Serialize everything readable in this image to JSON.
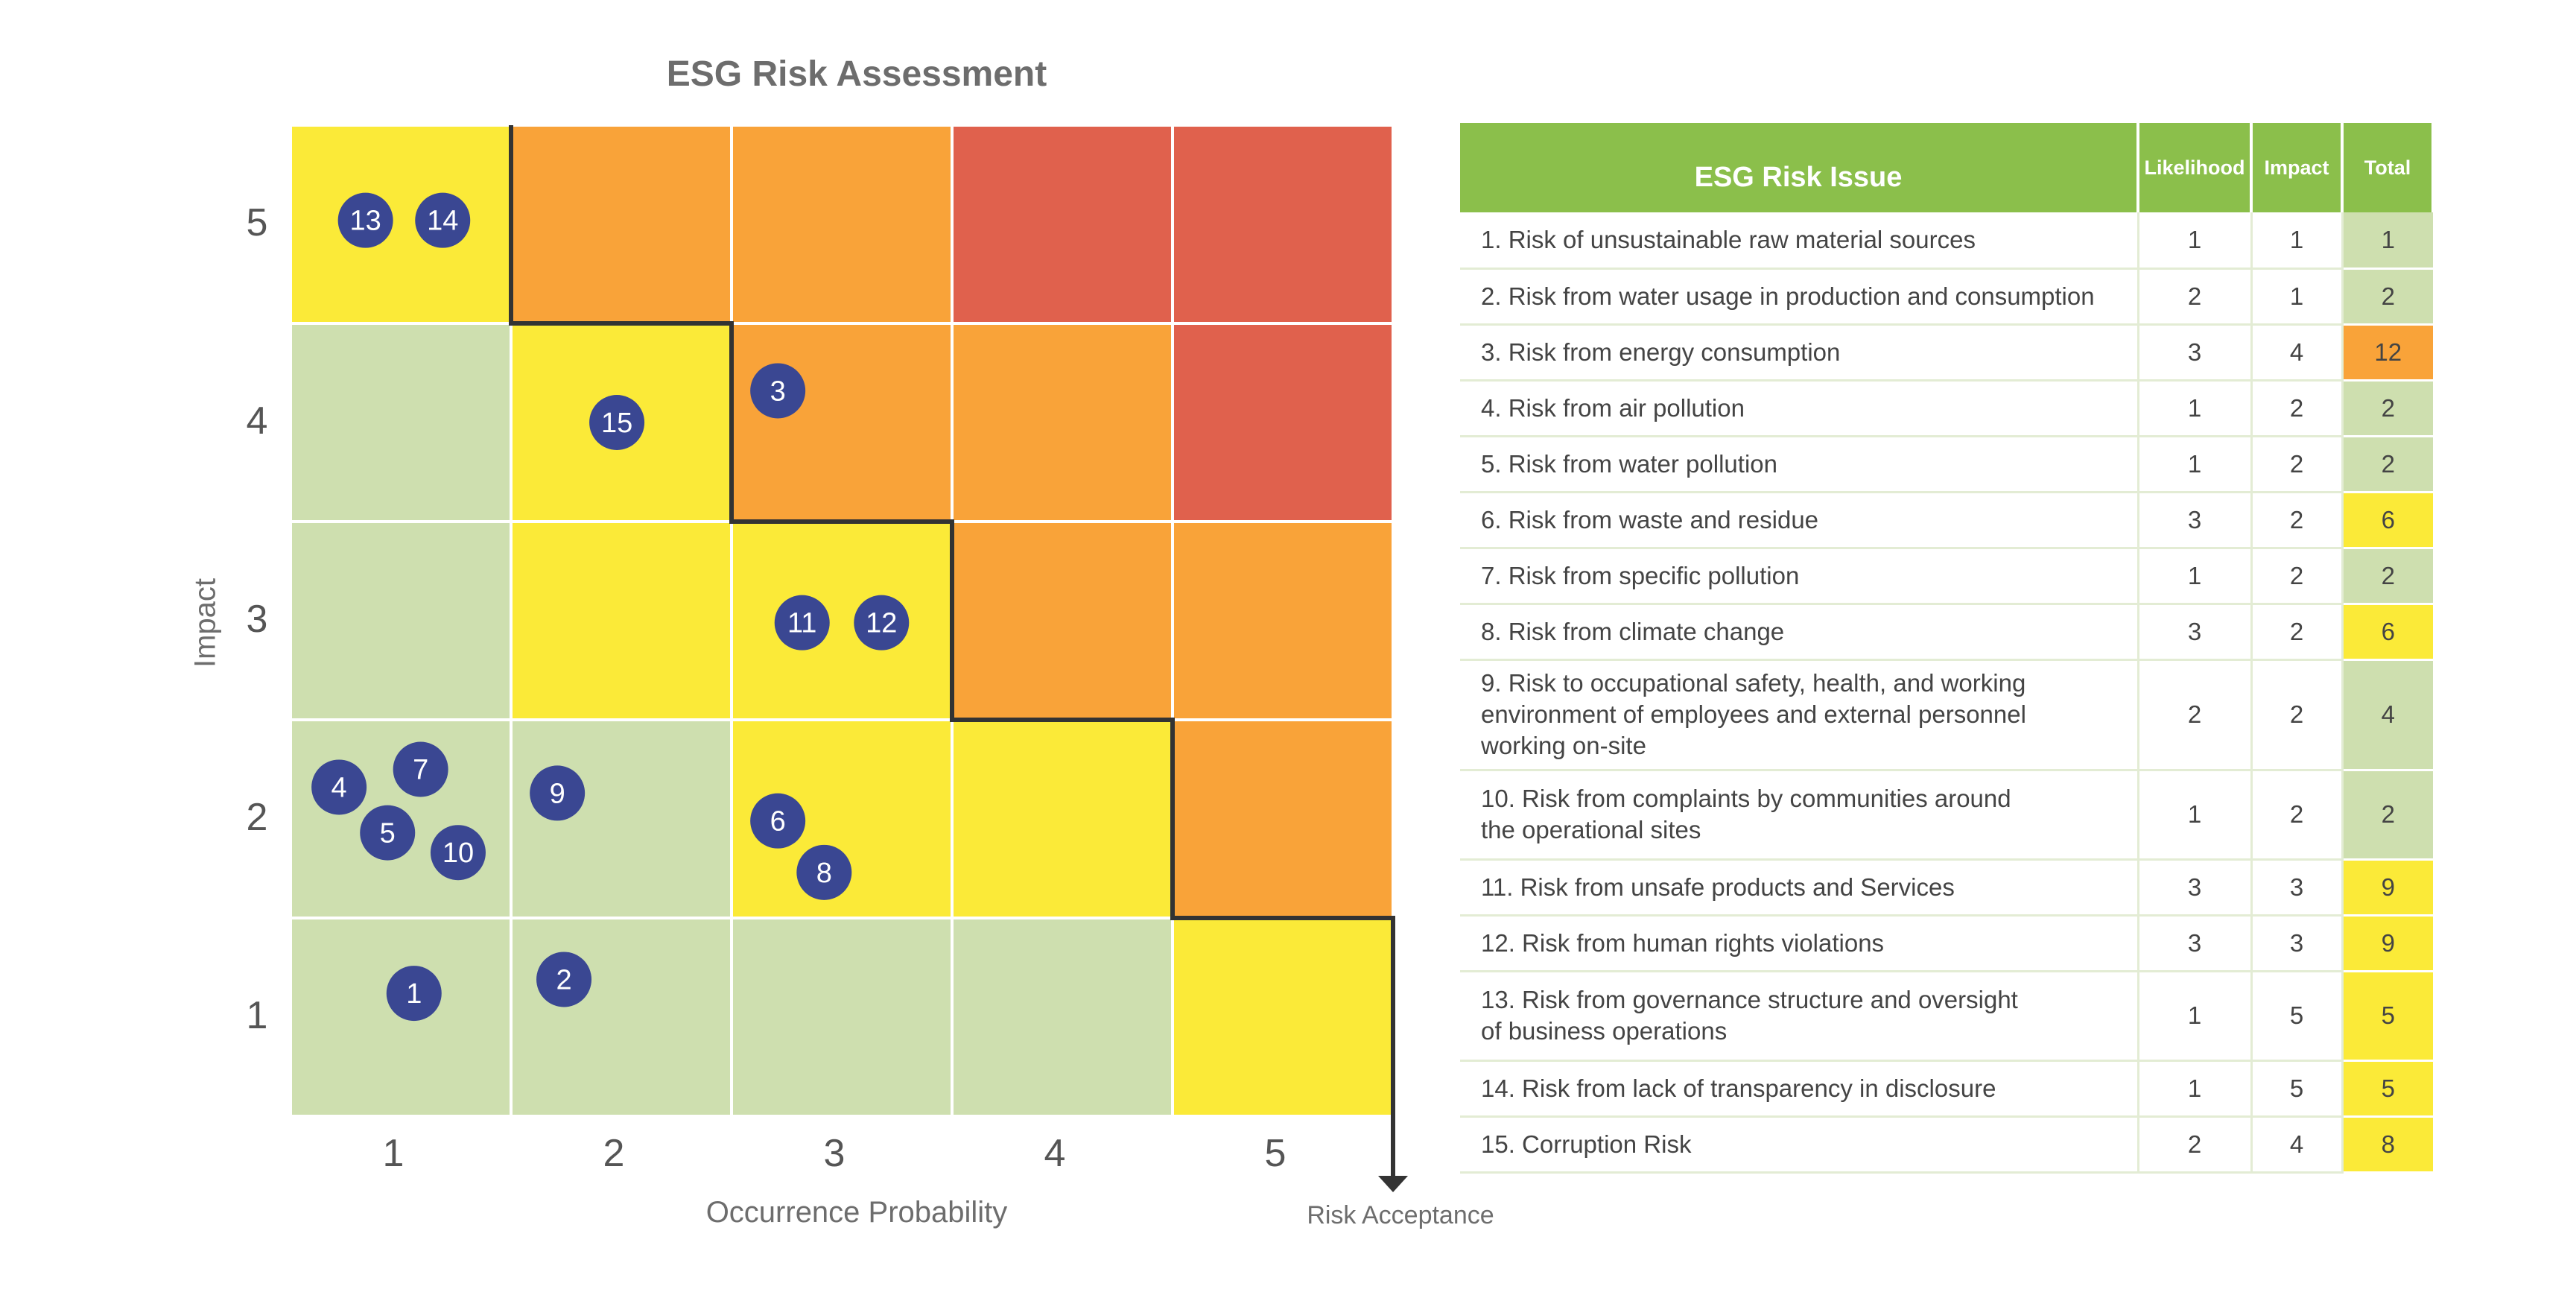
{
  "chart_data": {
    "type": "heatmap",
    "title": "ESG Risk Assessment",
    "xlabel": "Occurrence Probability",
    "ylabel": "Impact",
    "x_ticks": [
      "1",
      "2",
      "3",
      "4",
      "5"
    ],
    "y_ticks": [
      "1",
      "2",
      "3",
      "4",
      "5"
    ],
    "annotation": "Risk Acceptance",
    "colors": {
      "green": "#cedfaf",
      "yellow": "#fbea38",
      "orange": "#f9a339",
      "red": "#e0614d",
      "marker": "#3a4792",
      "boundary": "#333333"
    },
    "grid_colors": [
      [
        "yellow",
        "orange",
        "orange",
        "red",
        "red"
      ],
      [
        "green",
        "yellow",
        "orange",
        "orange",
        "red"
      ],
      [
        "green",
        "yellow",
        "yellow",
        "orange",
        "orange"
      ],
      [
        "green",
        "green",
        "yellow",
        "yellow",
        "orange"
      ],
      [
        "green",
        "green",
        "green",
        "green",
        "yellow"
      ]
    ],
    "points": [
      {
        "label": "1",
        "x": 1,
        "y": 1
      },
      {
        "label": "2",
        "x": 2,
        "y": 1
      },
      {
        "label": "3",
        "x": 3,
        "y": 4
      },
      {
        "label": "4",
        "x": 1,
        "y": 2
      },
      {
        "label": "5",
        "x": 1,
        "y": 2
      },
      {
        "label": "6",
        "x": 3,
        "y": 2
      },
      {
        "label": "7",
        "x": 1,
        "y": 2
      },
      {
        "label": "8",
        "x": 3,
        "y": 2
      },
      {
        "label": "9",
        "x": 2,
        "y": 2
      },
      {
        "label": "10",
        "x": 1,
        "y": 2
      },
      {
        "label": "11",
        "x": 3,
        "y": 3
      },
      {
        "label": "12",
        "x": 3,
        "y": 3
      },
      {
        "label": "13",
        "x": 1,
        "y": 5
      },
      {
        "label": "14",
        "x": 1,
        "y": 5
      },
      {
        "label": "15",
        "x": 2,
        "y": 4
      }
    ]
  },
  "table": {
    "headers": {
      "issue": "ESG Risk Issue",
      "likelihood": "Likelihood",
      "impact": "Impact",
      "total": "Total"
    },
    "rows": [
      {
        "issue": "1. Risk of unsustainable raw material sources",
        "likelihood": "1",
        "impact": "1",
        "total": "1",
        "level": "green"
      },
      {
        "issue": "2. Risk from water usage in production and consumption",
        "likelihood": "2",
        "impact": "1",
        "total": "2",
        "level": "green"
      },
      {
        "issue": "3. Risk from energy consumption",
        "likelihood": "3",
        "impact": "4",
        "total": "12",
        "level": "orange"
      },
      {
        "issue": "4. Risk from air pollution",
        "likelihood": "1",
        "impact": "2",
        "total": "2",
        "level": "green"
      },
      {
        "issue": "5. Risk from water pollution",
        "likelihood": "1",
        "impact": "2",
        "total": "2",
        "level": "green"
      },
      {
        "issue": "6. Risk from waste and residue",
        "likelihood": "3",
        "impact": "2",
        "total": "6",
        "level": "yellow"
      },
      {
        "issue": "7. Risk from specific pollution",
        "likelihood": "1",
        "impact": "2",
        "total": "2",
        "level": "green"
      },
      {
        "issue": "8. Risk from climate change",
        "likelihood": "3",
        "impact": "2",
        "total": "6",
        "level": "yellow"
      },
      {
        "issue": "9. Risk to occupational safety, health, and working\n    environment of employees and external personnel\n    working on-site",
        "likelihood": "2",
        "impact": "2",
        "total": "4",
        "level": "green"
      },
      {
        "issue": "10. Risk from complaints by communities around\n      the operational sites",
        "likelihood": "1",
        "impact": "2",
        "total": "2",
        "level": "green"
      },
      {
        "issue": "11. Risk from unsafe products and Services",
        "likelihood": "3",
        "impact": "3",
        "total": "9",
        "level": "yellow"
      },
      {
        "issue": "12. Risk from human rights violations",
        "likelihood": "3",
        "impact": "3",
        "total": "9",
        "level": "yellow"
      },
      {
        "issue": "13. Risk from governance structure and oversight\n      of business operations",
        "likelihood": "1",
        "impact": "5",
        "total": "5",
        "level": "yellow"
      },
      {
        "issue": "14. Risk from lack of transparency in disclosure",
        "likelihood": "1",
        "impact": "5",
        "total": "5",
        "level": "yellow"
      },
      {
        "issue": "15. Corruption Risk",
        "likelihood": "2",
        "impact": "4",
        "total": "8",
        "level": "yellow"
      }
    ]
  }
}
